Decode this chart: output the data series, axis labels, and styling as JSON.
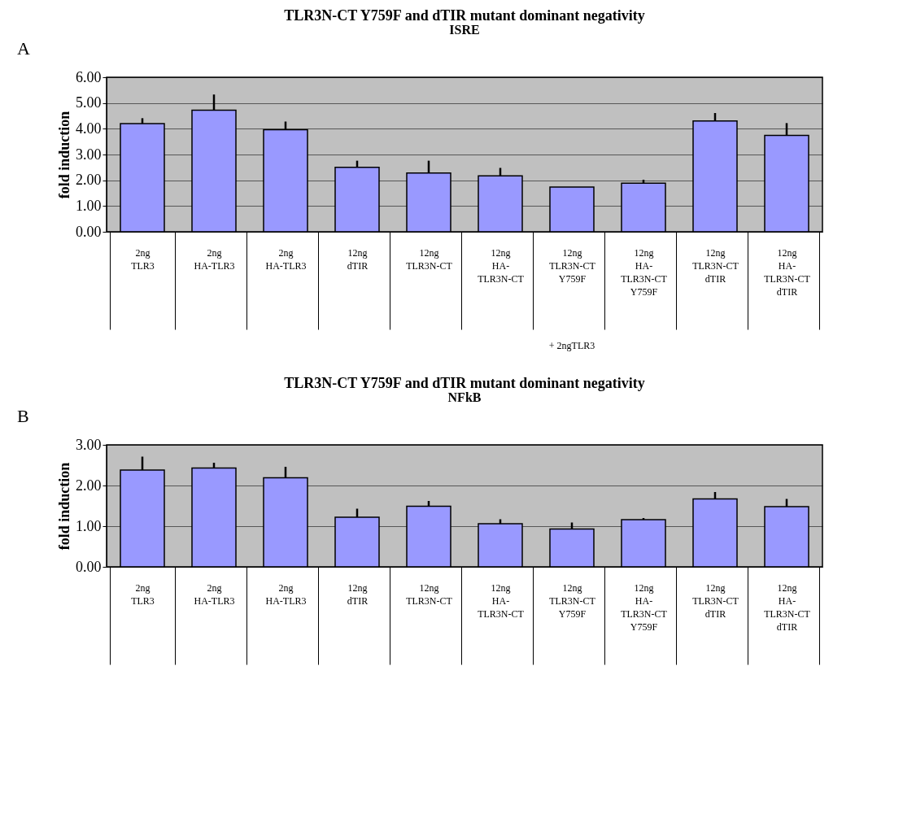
{
  "chart_data": [
    {
      "type": "bar",
      "title": "TLR3N-CT Y759F and dTIR mutant dominant negativity",
      "subtitle": "ISRE",
      "ylabel": "fold induction",
      "categories": [
        "2ng\n\nTLR3",
        "2ng\n\nHA-TLR3",
        "2ng\n\nHA-TLR3",
        "12ng\n\ndTIR",
        "12ng\n\nTLR3N-CT",
        "12ng\n\nHA-\nTLR3N-CT",
        "12ng\n\nTLR3N-CT\nY759F",
        "12ng\n\nHA-\nTLR3N-CT\nY759F",
        "12ng\n\nTLR3N-CT\ndTIR",
        "12ng\n\nHA-\nTLR3N-CT\ndTIR"
      ],
      "values": [
        4.2,
        4.72,
        3.96,
        2.5,
        2.28,
        2.17,
        1.74,
        1.89,
        4.3,
        3.74
      ],
      "errors": [
        [
          4.2,
          4.41
        ],
        [
          4.72,
          5.33
        ],
        [
          3.96,
          4.28
        ],
        [
          2.5,
          2.76
        ],
        [
          2.28,
          2.76
        ],
        [
          2.17,
          2.48
        ],
        null,
        [
          1.89,
          2.02
        ],
        [
          4.3,
          4.61
        ],
        [
          3.74,
          4.22
        ]
      ],
      "color": "#9999ff",
      "ylim": [
        0,
        6
      ],
      "yticks": [
        {
          "value": 0,
          "label": "0.00"
        },
        {
          "value": 1,
          "label": "1.00"
        },
        {
          "value": 2,
          "label": "2.00"
        },
        {
          "value": 3,
          "label": "3.00"
        },
        {
          "value": 4,
          "label": "4.00"
        },
        {
          "value": 5,
          "label": "5.00"
        },
        {
          "value": 6,
          "label": "6.00"
        }
      ],
      "grid": "y",
      "annotations": [
        "A",
        "+ 2ngTLR3"
      ]
    },
    {
      "type": "bar",
      "title": "TLR3N-CT Y759F and dTIR mutant dominant negativity",
      "subtitle": "NFkB",
      "ylabel": "fold induction",
      "categories": [
        "2ng\n\nTLR3",
        "2ng\n\nHA-TLR3",
        "2ng\n\nHA-TLR3",
        "12ng\n\ndTIR",
        "12ng\n\nTLR3N-CT",
        "12ng\n\nHA-\nTLR3N-CT",
        "12ng\n\nTLR3N-CT\nY759F",
        "12ng\n\nHA-\nTLR3N-CT\nY759F",
        "12ng\n\nTLR3N-CT\ndTIR",
        "12ng\n\nHA-\nTLR3N-CT\ndTIR"
      ],
      "values": [
        2.38,
        2.43,
        2.19,
        1.22,
        1.49,
        1.06,
        0.93,
        1.16,
        1.67,
        1.48
      ],
      "errors": [
        [
          2.38,
          2.71
        ],
        [
          2.43,
          2.56
        ],
        [
          2.19,
          2.46
        ],
        [
          1.22,
          1.43
        ],
        [
          1.49,
          1.62
        ],
        [
          1.06,
          1.17
        ],
        [
          0.93,
          1.09
        ],
        [
          1.16,
          1.2
        ],
        [
          1.67,
          1.84
        ],
        [
          1.48,
          1.67
        ]
      ],
      "color": "#9999ff",
      "ylim": [
        0,
        3
      ],
      "yticks": [
        {
          "value": 0,
          "label": "0.00"
        },
        {
          "value": 1,
          "label": "1.00"
        },
        {
          "value": 2,
          "label": "2.00"
        },
        {
          "value": 3,
          "label": "3.00"
        }
      ],
      "grid": "y",
      "annotations": [
        "B"
      ]
    }
  ]
}
